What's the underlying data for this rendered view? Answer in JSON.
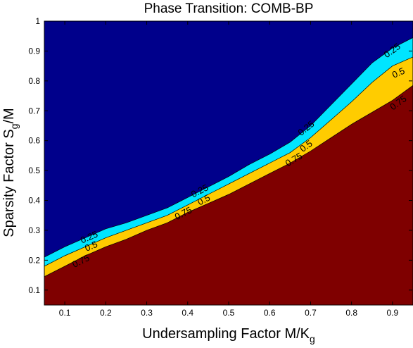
{
  "chart_data": {
    "type": "contour",
    "title": "Phase Transition: COMB-BP",
    "xlabel_main": "Undersampling Factor M/K",
    "xlabel_sub": "g",
    "ylabel_main": "Sparsity Factor S",
    "ylabel_sub": "g",
    "ylabel_tail": "/M",
    "xlim": [
      0.05,
      0.95
    ],
    "ylim": [
      0.05,
      1.0
    ],
    "xticks": [
      0.1,
      0.2,
      0.3,
      0.4,
      0.5,
      0.6,
      0.7,
      0.8,
      0.9
    ],
    "yticks": [
      0.1,
      0.2,
      0.3,
      0.4,
      0.5,
      0.6,
      0.7,
      0.8,
      0.9,
      1.0
    ],
    "xtick_labels": [
      "0.1",
      "0.2",
      "0.3",
      "0.4",
      "0.5",
      "0.6",
      "0.7",
      "0.8",
      "0.9"
    ],
    "ytick_labels": [
      "0.1",
      "0.2",
      "0.3",
      "0.4",
      "0.5",
      "0.6",
      "0.7",
      "0.8",
      "0.9",
      "1"
    ],
    "colors": {
      "background": "#00008b",
      "level_025": "#00e5ff",
      "level_05": "#ffcc00",
      "level_075": "#7f0000",
      "line": "#000000"
    },
    "contours": [
      {
        "level": 0.25,
        "label": "0.25",
        "color": "#00e5ff",
        "points": [
          [
            0.05,
            0.21
          ],
          [
            0.1,
            0.245
          ],
          [
            0.15,
            0.275
          ],
          [
            0.2,
            0.305
          ],
          [
            0.25,
            0.325
          ],
          [
            0.3,
            0.35
          ],
          [
            0.35,
            0.375
          ],
          [
            0.4,
            0.41
          ],
          [
            0.45,
            0.445
          ],
          [
            0.5,
            0.48
          ],
          [
            0.55,
            0.52
          ],
          [
            0.6,
            0.555
          ],
          [
            0.65,
            0.595
          ],
          [
            0.7,
            0.65
          ],
          [
            0.75,
            0.72
          ],
          [
            0.8,
            0.79
          ],
          [
            0.85,
            0.86
          ],
          [
            0.9,
            0.91
          ],
          [
            0.95,
            0.945
          ]
        ],
        "label_positions": [
          [
            0.16,
            0.275
          ],
          [
            0.43,
            0.43
          ],
          [
            0.69,
            0.64
          ],
          [
            0.9,
            0.9
          ]
        ]
      },
      {
        "level": 0.5,
        "label": "0.5",
        "color": "#ffcc00",
        "points": [
          [
            0.05,
            0.18
          ],
          [
            0.1,
            0.215
          ],
          [
            0.15,
            0.245
          ],
          [
            0.2,
            0.275
          ],
          [
            0.25,
            0.3
          ],
          [
            0.3,
            0.325
          ],
          [
            0.35,
            0.35
          ],
          [
            0.4,
            0.385
          ],
          [
            0.45,
            0.42
          ],
          [
            0.5,
            0.455
          ],
          [
            0.55,
            0.49
          ],
          [
            0.6,
            0.525
          ],
          [
            0.65,
            0.56
          ],
          [
            0.7,
            0.61
          ],
          [
            0.75,
            0.67
          ],
          [
            0.8,
            0.73
          ],
          [
            0.85,
            0.795
          ],
          [
            0.9,
            0.85
          ],
          [
            0.95,
            0.88
          ]
        ],
        "label_positions": [
          [
            0.165,
            0.245
          ],
          [
            0.44,
            0.4
          ],
          [
            0.69,
            0.58
          ],
          [
            0.915,
            0.825
          ]
        ]
      },
      {
        "level": 0.75,
        "label": "0.75",
        "color": "#7f0000",
        "points": [
          [
            0.05,
            0.145
          ],
          [
            0.1,
            0.18
          ],
          [
            0.15,
            0.215
          ],
          [
            0.2,
            0.245
          ],
          [
            0.25,
            0.27
          ],
          [
            0.3,
            0.3
          ],
          [
            0.35,
            0.325
          ],
          [
            0.4,
            0.36
          ],
          [
            0.45,
            0.39
          ],
          [
            0.5,
            0.42
          ],
          [
            0.55,
            0.455
          ],
          [
            0.6,
            0.49
          ],
          [
            0.65,
            0.525
          ],
          [
            0.7,
            0.565
          ],
          [
            0.75,
            0.61
          ],
          [
            0.8,
            0.655
          ],
          [
            0.85,
            0.695
          ],
          [
            0.9,
            0.735
          ],
          [
            0.95,
            0.785
          ]
        ],
        "label_positions": [
          [
            0.14,
            0.195
          ],
          [
            0.39,
            0.355
          ],
          [
            0.66,
            0.535
          ],
          [
            0.915,
            0.725
          ]
        ]
      }
    ]
  }
}
